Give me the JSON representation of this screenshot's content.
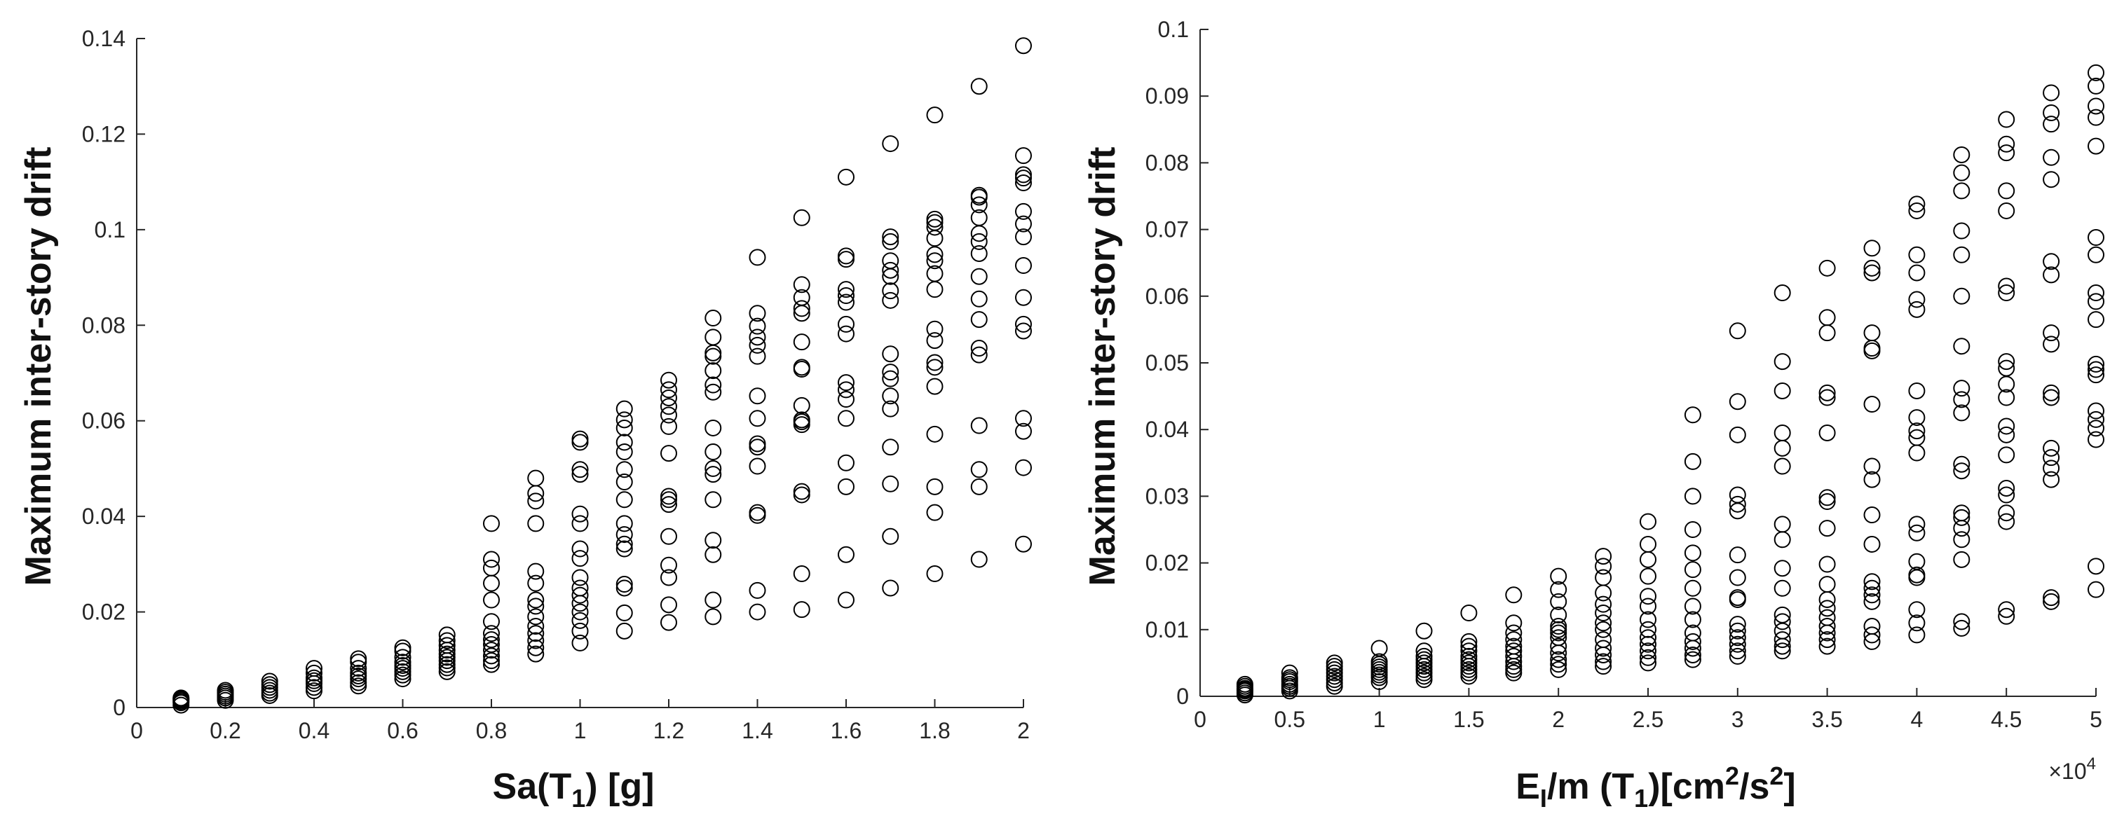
{
  "style": {
    "marker_color": "#000000",
    "axis_color": "#262626",
    "marker": "open-circle"
  },
  "chart_data": [
    {
      "type": "scatter",
      "xlabel": {
        "main": "Sa(T",
        "sub": "1",
        "tail": ") [g]"
      },
      "ylabel": "Maximum inter-story drift",
      "xlim": [
        0,
        2
      ],
      "ylim": [
        0,
        0.14
      ],
      "xticks": [
        "0",
        "0.2",
        "0.4",
        "0.6",
        "0.8",
        "1",
        "1.2",
        "1.4",
        "1.6",
        "1.8",
        "2"
      ],
      "yticks": [
        "0",
        "0.02",
        "0.04",
        "0.06",
        "0.08",
        "0.1",
        "0.12",
        "0.14"
      ],
      "grid": false,
      "columns": [
        {
          "x": 0.1,
          "y": [
            0.0005,
            0.001,
            0.0013,
            0.0016,
            0.0018,
            0.002
          ]
        },
        {
          "x": 0.2,
          "y": [
            0.0015,
            0.002,
            0.0024,
            0.0028,
            0.0032,
            0.0036
          ]
        },
        {
          "x": 0.3,
          "y": [
            0.0025,
            0.003,
            0.0036,
            0.0042,
            0.0048,
            0.0055
          ]
        },
        {
          "x": 0.4,
          "y": [
            0.0035,
            0.0042,
            0.005,
            0.0056,
            0.0062,
            0.0072,
            0.0082
          ]
        },
        {
          "x": 0.5,
          "y": [
            0.0045,
            0.0052,
            0.006,
            0.0066,
            0.0072,
            0.0082,
            0.0095,
            0.0102
          ]
        },
        {
          "x": 0.6,
          "y": [
            0.006,
            0.0068,
            0.0075,
            0.0082,
            0.0088,
            0.0095,
            0.0105,
            0.0118,
            0.0125
          ]
        },
        {
          "x": 0.7,
          "y": [
            0.0075,
            0.0083,
            0.009,
            0.0098,
            0.0105,
            0.0112,
            0.012,
            0.013,
            0.014,
            0.0152
          ]
        },
        {
          "x": 0.8,
          "y": [
            0.009,
            0.0098,
            0.0108,
            0.012,
            0.0132,
            0.0142,
            0.0155,
            0.018,
            0.0225,
            0.026,
            0.0292,
            0.031,
            0.0385
          ]
        },
        {
          "x": 0.9,
          "y": [
            0.0112,
            0.0125,
            0.014,
            0.0155,
            0.017,
            0.019,
            0.0212,
            0.0225,
            0.026,
            0.0285,
            0.0385,
            0.0432,
            0.0448,
            0.048
          ]
        },
        {
          "x": 1.0,
          "y": [
            0.0135,
            0.016,
            0.0182,
            0.02,
            0.0218,
            0.0235,
            0.025,
            0.0272,
            0.0312,
            0.0332,
            0.0385,
            0.0405,
            0.0488,
            0.0498,
            0.0555,
            0.0562
          ]
        },
        {
          "x": 1.1,
          "y": [
            0.016,
            0.0198,
            0.025,
            0.0258,
            0.0332,
            0.0342,
            0.0362,
            0.0385,
            0.0435,
            0.0472,
            0.0498,
            0.0535,
            0.0555,
            0.0585,
            0.0602,
            0.0625
          ]
        },
        {
          "x": 1.2,
          "y": [
            0.0178,
            0.0215,
            0.0272,
            0.0298,
            0.0358,
            0.0425,
            0.0435,
            0.0442,
            0.0532,
            0.0588,
            0.0612,
            0.063,
            0.0648,
            0.0665,
            0.0685
          ]
        },
        {
          "x": 1.3,
          "y": [
            0.019,
            0.0225,
            0.032,
            0.035,
            0.0435,
            0.0488,
            0.05,
            0.0535,
            0.0585,
            0.066,
            0.0675,
            0.0705,
            0.0735,
            0.0742,
            0.0775,
            0.0815
          ]
        },
        {
          "x": 1.4,
          "y": [
            0.02,
            0.0245,
            0.0402,
            0.0408,
            0.0505,
            0.0545,
            0.0552,
            0.0605,
            0.0652,
            0.0735,
            0.0758,
            0.0775,
            0.0798,
            0.0825,
            0.0942
          ]
        },
        {
          "x": 1.5,
          "y": [
            0.0205,
            0.028,
            0.0445,
            0.0452,
            0.0592,
            0.0598,
            0.0602,
            0.0632,
            0.0708,
            0.0712,
            0.0765,
            0.0825,
            0.0835,
            0.0858,
            0.0885,
            0.1025
          ]
        },
        {
          "x": 1.6,
          "y": [
            0.0225,
            0.032,
            0.0462,
            0.0512,
            0.0605,
            0.0645,
            0.0665,
            0.068,
            0.0782,
            0.0802,
            0.0848,
            0.0862,
            0.0875,
            0.0938,
            0.0945,
            0.111
          ]
        },
        {
          "x": 1.7,
          "y": [
            0.025,
            0.0358,
            0.0468,
            0.0545,
            0.0625,
            0.0652,
            0.0688,
            0.0702,
            0.074,
            0.0852,
            0.0872,
            0.0902,
            0.0915,
            0.0935,
            0.0975,
            0.0985,
            0.118
          ]
        },
        {
          "x": 1.8,
          "y": [
            0.028,
            0.0408,
            0.0462,
            0.0572,
            0.0672,
            0.0712,
            0.0722,
            0.0768,
            0.0792,
            0.0875,
            0.0908,
            0.0935,
            0.0948,
            0.0982,
            0.1005,
            0.1015,
            0.1022,
            0.124
          ]
        },
        {
          "x": 1.9,
          "y": [
            0.031,
            0.0462,
            0.0498,
            0.059,
            0.0738,
            0.0752,
            0.0812,
            0.0855,
            0.0902,
            0.095,
            0.0975,
            0.0992,
            0.1025,
            0.1052,
            0.1068,
            0.1072,
            0.13
          ]
        },
        {
          "x": 2.0,
          "y": [
            0.0342,
            0.0502,
            0.0578,
            0.0605,
            0.0788,
            0.0802,
            0.0858,
            0.0925,
            0.0985,
            0.1012,
            0.1038,
            0.1098,
            0.1108,
            0.1115,
            0.1155,
            0.1385
          ]
        }
      ]
    },
    {
      "type": "scatter",
      "xlabel": {
        "pre": "E",
        "sub1": "I",
        "mid": "/m (T",
        "sub2": "1",
        "tail1": ")[cm",
        "sup1": "2",
        "tail2": "/s",
        "sup2": "2",
        "end": "]"
      },
      "ylabel": "Maximum inter-story drift",
      "xlim": [
        0,
        5
      ],
      "ylim": [
        0,
        0.1
      ],
      "x_exponent": {
        "base": "×10",
        "power": "4"
      },
      "xticks": [
        "0",
        "0.5",
        "1",
        "1.5",
        "2",
        "2.5",
        "3",
        "3.5",
        "4",
        "4.5",
        "5"
      ],
      "yticks": [
        "0",
        "0.01",
        "0.02",
        "0.03",
        "0.04",
        "0.05",
        "0.06",
        "0.07",
        "0.08",
        "0.09",
        "0.1"
      ],
      "grid": false,
      "columns": [
        {
          "x": 0.25,
          "y": [
            0.0002,
            0.0005,
            0.0008,
            0.001,
            0.0012,
            0.0015,
            0.0018
          ]
        },
        {
          "x": 0.5,
          "y": [
            0.0008,
            0.0012,
            0.0015,
            0.0018,
            0.0022,
            0.0025,
            0.0028,
            0.0035
          ]
        },
        {
          "x": 0.75,
          "y": [
            0.0015,
            0.002,
            0.0025,
            0.003,
            0.0035,
            0.004,
            0.0045,
            0.005
          ]
        },
        {
          "x": 1.0,
          "y": [
            0.0022,
            0.0028,
            0.0032,
            0.0036,
            0.004,
            0.0044,
            0.0048,
            0.0052,
            0.0072
          ]
        },
        {
          "x": 1.25,
          "y": [
            0.0025,
            0.003,
            0.0035,
            0.004,
            0.0045,
            0.005,
            0.0055,
            0.006,
            0.0068,
            0.0098
          ]
        },
        {
          "x": 1.5,
          "y": [
            0.003,
            0.0035,
            0.004,
            0.0045,
            0.005,
            0.0055,
            0.006,
            0.0068,
            0.0075,
            0.0082,
            0.0125
          ]
        },
        {
          "x": 1.75,
          "y": [
            0.0035,
            0.004,
            0.0045,
            0.0052,
            0.006,
            0.0068,
            0.0075,
            0.0085,
            0.0095,
            0.011,
            0.0152
          ]
        },
        {
          "x": 2.0,
          "y": [
            0.004,
            0.0048,
            0.0055,
            0.0065,
            0.0075,
            0.0088,
            0.0095,
            0.01,
            0.0105,
            0.0122,
            0.0142,
            0.016,
            0.018
          ]
        },
        {
          "x": 2.25,
          "y": [
            0.0045,
            0.0052,
            0.0062,
            0.0072,
            0.0085,
            0.01,
            0.011,
            0.0125,
            0.0138,
            0.0155,
            0.0178,
            0.0195,
            0.021
          ]
        },
        {
          "x": 2.5,
          "y": [
            0.005,
            0.0058,
            0.0068,
            0.0078,
            0.0088,
            0.01,
            0.0115,
            0.0135,
            0.015,
            0.018,
            0.0205,
            0.0228,
            0.0262
          ]
        },
        {
          "x": 2.75,
          "y": [
            0.0055,
            0.0062,
            0.0072,
            0.0082,
            0.0095,
            0.0115,
            0.0135,
            0.0162,
            0.019,
            0.0215,
            0.025,
            0.03,
            0.0352,
            0.0422
          ]
        },
        {
          "x": 3.0,
          "y": [
            0.006,
            0.0068,
            0.0078,
            0.0088,
            0.0098,
            0.0108,
            0.0145,
            0.0148,
            0.0178,
            0.0212,
            0.0278,
            0.0288,
            0.0302,
            0.0392,
            0.0442,
            0.0548
          ]
        },
        {
          "x": 3.25,
          "y": [
            0.0068,
            0.0075,
            0.0085,
            0.0098,
            0.0112,
            0.0122,
            0.0162,
            0.0192,
            0.0235,
            0.0258,
            0.0345,
            0.0372,
            0.0395,
            0.0458,
            0.0502,
            0.0605
          ]
        },
        {
          "x": 3.5,
          "y": [
            0.0075,
            0.0085,
            0.0095,
            0.0105,
            0.0118,
            0.0132,
            0.0145,
            0.0168,
            0.0198,
            0.0252,
            0.0292,
            0.0298,
            0.0395,
            0.0448,
            0.0455,
            0.0545,
            0.0568,
            0.0642
          ]
        },
        {
          "x": 3.75,
          "y": [
            0.0082,
            0.0092,
            0.0105,
            0.0142,
            0.0152,
            0.0162,
            0.0172,
            0.0228,
            0.0272,
            0.0325,
            0.0345,
            0.0438,
            0.0518,
            0.0522,
            0.0545,
            0.0635,
            0.0642,
            0.0672
          ]
        },
        {
          "x": 4.0,
          "y": [
            0.0092,
            0.011,
            0.013,
            0.0178,
            0.0182,
            0.0202,
            0.0245,
            0.0258,
            0.0365,
            0.0388,
            0.0398,
            0.0418,
            0.0458,
            0.058,
            0.0595,
            0.0635,
            0.0662,
            0.0728,
            0.0738
          ]
        },
        {
          "x": 4.25,
          "y": [
            0.0102,
            0.0112,
            0.0205,
            0.0235,
            0.0252,
            0.0268,
            0.0275,
            0.0338,
            0.0348,
            0.0425,
            0.0445,
            0.0462,
            0.0525,
            0.06,
            0.0662,
            0.0698,
            0.0758,
            0.0785,
            0.0812
          ]
        },
        {
          "x": 4.5,
          "y": [
            0.012,
            0.013,
            0.0262,
            0.0275,
            0.0302,
            0.0312,
            0.0362,
            0.0392,
            0.0405,
            0.0448,
            0.0468,
            0.0492,
            0.0502,
            0.0605,
            0.0615,
            0.0728,
            0.0758,
            0.0815,
            0.0828,
            0.0865
          ]
        },
        {
          "x": 4.75,
          "y": [
            0.0142,
            0.0148,
            0.0325,
            0.0342,
            0.0358,
            0.0372,
            0.0448,
            0.0455,
            0.0528,
            0.0545,
            0.0632,
            0.0652,
            0.0775,
            0.0808,
            0.0858,
            0.0875,
            0.0905
          ]
        },
        {
          "x": 5.0,
          "y": [
            0.016,
            0.0195,
            0.0385,
            0.0402,
            0.0415,
            0.0428,
            0.0482,
            0.049,
            0.0498,
            0.0565,
            0.0592,
            0.0605,
            0.0662,
            0.0688,
            0.0825,
            0.0868,
            0.0885,
            0.0915,
            0.0935
          ]
        }
      ]
    }
  ]
}
